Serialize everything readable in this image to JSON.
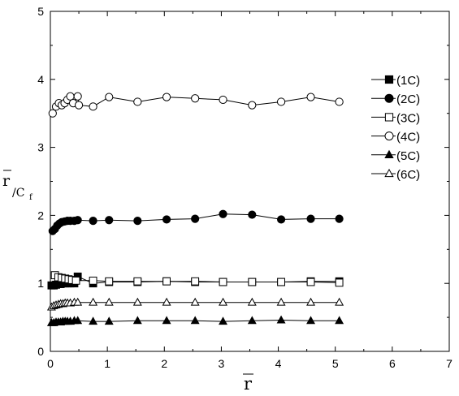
{
  "chart_data": {
    "type": "scatter",
    "x_axis": {
      "label": "r",
      "label_overline": true,
      "range": [
        0,
        7
      ],
      "ticks": [
        "0",
        "1",
        "2",
        "3",
        "4",
        "5",
        "6",
        "7"
      ]
    },
    "y_axis": {
      "label_main": "r",
      "label_sub": "/C",
      "label_subscript": "f",
      "label_overline": true,
      "range": [
        0,
        5
      ],
      "ticks": [
        "0",
        "1",
        "2",
        "3",
        "4",
        "5"
      ]
    },
    "grid": false,
    "legend_position": "right",
    "series": [
      {
        "name": "(1C)",
        "marker": "square",
        "filled": true,
        "points": [
          [
            0.02,
            0.97
          ],
          [
            0.06,
            0.97
          ],
          [
            0.1,
            0.98
          ],
          [
            0.14,
            0.99
          ],
          [
            0.18,
            0.99
          ],
          [
            0.22,
            1.0
          ],
          [
            0.26,
            1.0
          ],
          [
            0.3,
            1.0
          ],
          [
            0.35,
            1.0
          ],
          [
            0.42,
            1.0
          ],
          [
            0.48,
            1.1
          ],
          [
            0.75,
            1.0
          ],
          [
            1.03,
            1.02
          ],
          [
            1.53,
            1.02
          ],
          [
            2.04,
            1.03
          ],
          [
            2.54,
            1.02
          ],
          [
            3.03,
            1.02
          ],
          [
            3.54,
            1.02
          ],
          [
            4.05,
            1.02
          ],
          [
            4.57,
            1.03
          ],
          [
            5.07,
            1.03
          ]
        ]
      },
      {
        "name": "(2C)",
        "marker": "circle",
        "filled": true,
        "points": [
          [
            0.04,
            1.77
          ],
          [
            0.08,
            1.8
          ],
          [
            0.12,
            1.85
          ],
          [
            0.16,
            1.88
          ],
          [
            0.2,
            1.9
          ],
          [
            0.25,
            1.91
          ],
          [
            0.3,
            1.92
          ],
          [
            0.35,
            1.92
          ],
          [
            0.42,
            1.92
          ],
          [
            0.48,
            1.93
          ],
          [
            0.75,
            1.92
          ],
          [
            1.03,
            1.93
          ],
          [
            1.53,
            1.92
          ],
          [
            2.04,
            1.94
          ],
          [
            2.54,
            1.95
          ],
          [
            3.03,
            2.02
          ],
          [
            3.54,
            2.01
          ],
          [
            4.05,
            1.94
          ],
          [
            4.57,
            1.95
          ],
          [
            5.07,
            1.95
          ]
        ]
      },
      {
        "name": "(3C)",
        "marker": "square",
        "filled": false,
        "points": [
          [
            0.08,
            1.12
          ],
          [
            0.14,
            1.09
          ],
          [
            0.2,
            1.08
          ],
          [
            0.26,
            1.07
          ],
          [
            0.32,
            1.06
          ],
          [
            0.38,
            1.05
          ],
          [
            0.45,
            1.04
          ],
          [
            0.75,
            1.04
          ],
          [
            1.03,
            1.03
          ],
          [
            1.53,
            1.03
          ],
          [
            2.04,
            1.03
          ],
          [
            2.54,
            1.03
          ],
          [
            3.03,
            1.02
          ],
          [
            3.54,
            1.02
          ],
          [
            4.05,
            1.02
          ],
          [
            4.57,
            1.02
          ],
          [
            5.07,
            1.01
          ]
        ]
      },
      {
        "name": "(4C)",
        "marker": "circle",
        "filled": false,
        "points": [
          [
            0.04,
            3.5
          ],
          [
            0.1,
            3.6
          ],
          [
            0.15,
            3.65
          ],
          [
            0.2,
            3.62
          ],
          [
            0.25,
            3.65
          ],
          [
            0.3,
            3.7
          ],
          [
            0.35,
            3.75
          ],
          [
            0.4,
            3.65
          ],
          [
            0.48,
            3.75
          ],
          [
            0.5,
            3.62
          ],
          [
            0.75,
            3.6
          ],
          [
            1.03,
            3.74
          ],
          [
            1.53,
            3.67
          ],
          [
            2.04,
            3.74
          ],
          [
            2.54,
            3.72
          ],
          [
            3.03,
            3.7
          ],
          [
            3.54,
            3.62
          ],
          [
            4.05,
            3.67
          ],
          [
            4.57,
            3.74
          ],
          [
            5.07,
            3.67
          ]
        ]
      },
      {
        "name": "(5C)",
        "marker": "triangle",
        "filled": true,
        "points": [
          [
            0.02,
            0.42
          ],
          [
            0.06,
            0.42
          ],
          [
            0.1,
            0.43
          ],
          [
            0.14,
            0.43
          ],
          [
            0.18,
            0.43
          ],
          [
            0.22,
            0.44
          ],
          [
            0.26,
            0.44
          ],
          [
            0.3,
            0.44
          ],
          [
            0.35,
            0.44
          ],
          [
            0.42,
            0.45
          ],
          [
            0.48,
            0.45
          ],
          [
            0.75,
            0.44
          ],
          [
            1.03,
            0.44
          ],
          [
            1.53,
            0.45
          ],
          [
            2.04,
            0.45
          ],
          [
            2.54,
            0.45
          ],
          [
            3.03,
            0.44
          ],
          [
            3.54,
            0.45
          ],
          [
            4.05,
            0.46
          ],
          [
            4.57,
            0.45
          ],
          [
            5.07,
            0.45
          ]
        ]
      },
      {
        "name": "(6C)",
        "marker": "triangle",
        "filled": false,
        "points": [
          [
            0.02,
            0.65
          ],
          [
            0.06,
            0.67
          ],
          [
            0.1,
            0.68
          ],
          [
            0.14,
            0.69
          ],
          [
            0.18,
            0.7
          ],
          [
            0.22,
            0.7
          ],
          [
            0.26,
            0.71
          ],
          [
            0.3,
            0.71
          ],
          [
            0.35,
            0.71
          ],
          [
            0.42,
            0.72
          ],
          [
            0.48,
            0.72
          ],
          [
            0.75,
            0.72
          ],
          [
            1.03,
            0.72
          ],
          [
            1.53,
            0.72
          ],
          [
            2.04,
            0.72
          ],
          [
            2.54,
            0.72
          ],
          [
            3.03,
            0.72
          ],
          [
            3.54,
            0.72
          ],
          [
            4.05,
            0.72
          ],
          [
            4.57,
            0.72
          ],
          [
            5.07,
            0.72
          ]
        ]
      }
    ]
  }
}
